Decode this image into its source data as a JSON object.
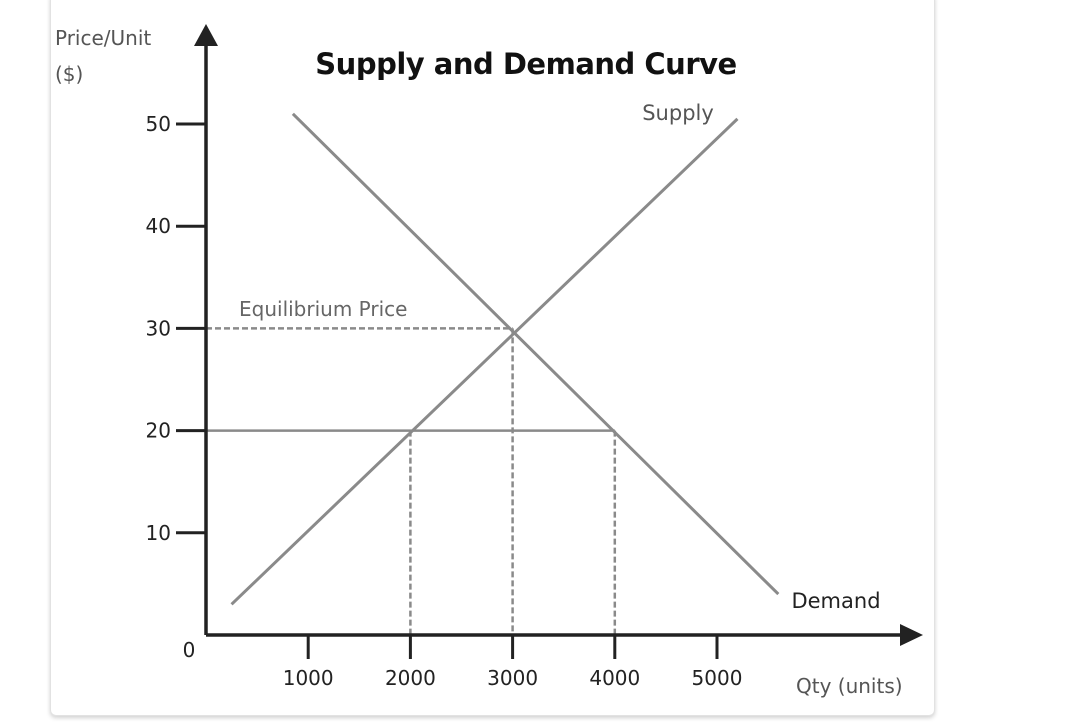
{
  "chart_data": {
    "type": "line",
    "title": "Supply and Demand Curve",
    "ylabel_lines": [
      "Price/Unit",
      "($)"
    ],
    "xlabel": "Qty (units)",
    "origin_label": "0",
    "x_ticks": [
      1000,
      2000,
      3000,
      4000,
      5000
    ],
    "y_ticks": [
      10,
      20,
      30,
      40,
      50
    ],
    "series": [
      {
        "name": "Supply",
        "x": [
          250,
          5200
        ],
        "y": [
          3,
          50.5
        ]
      },
      {
        "name": "Demand",
        "x": [
          850,
          5600
        ],
        "y": [
          51,
          4
        ]
      }
    ],
    "price_line": {
      "y": 20,
      "x": [
        0,
        4000
      ]
    },
    "equilibrium": {
      "label": "Equilibrium Price",
      "x": 3000,
      "y": 30
    },
    "quantity_markers": [
      2000,
      3000,
      4000
    ],
    "colors": {
      "axis": "#222222",
      "curve": "#8a8a8a",
      "guide": "#8a8a8a"
    }
  }
}
